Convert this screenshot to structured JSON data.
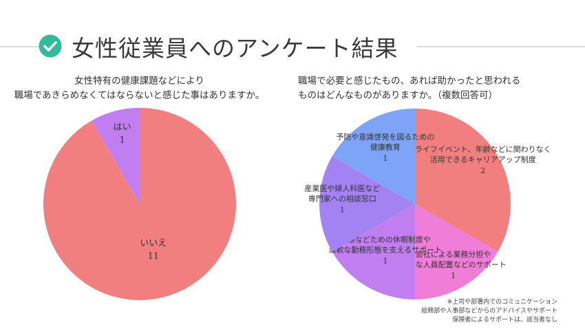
{
  "page": {
    "title": "女性従業員へのアンケート結果",
    "icon": "check-circle-icon",
    "colors": {
      "icon": "#33b99b",
      "rule": "#dcdcdc"
    }
  },
  "chart_data": [
    {
      "type": "pie",
      "title_lines": [
        "女性特有の健康課題などにより",
        "職場であきらめなくてはならないと感じた事はありますか。"
      ],
      "slices": [
        {
          "label_lines": [
            "いいえ"
          ],
          "value": 11,
          "value_text": "11",
          "color": "#f27f7f"
        },
        {
          "label_lines": [
            "はい"
          ],
          "value": 1,
          "value_text": "1",
          "color": "#c07ef0"
        }
      ],
      "start_angle_deg": 0,
      "direction": "clockwise"
    },
    {
      "type": "pie",
      "title_lines": [
        "職場で必要と感じたもの、あれば助かったと思われる",
        "ものはどんなものがありますか。（複数回答可）"
      ],
      "slices": [
        {
          "label_lines": [
            "ライフイベント、年齢などに関わりなく",
            "活用できるキャリアアップ制度"
          ],
          "value": 2,
          "value_text": "2",
          "color": "#f27f7f"
        },
        {
          "label_lines": [
            "会社による業務分担や",
            "適切な人員配置などのサポート"
          ],
          "value": 1,
          "value_text": "1",
          "color": "#f07dd8"
        },
        {
          "label_lines": [
            "治療などための休暇制度や",
            "柔軟な勤務形態を支えるサポート"
          ],
          "value": 1,
          "value_text": "1",
          "color": "#c07ef0"
        },
        {
          "label_lines": [
            "産業医や婦人科医など",
            "専門家への相談窓口"
          ],
          "value": 1,
          "value_text": "1",
          "color": "#a383f3"
        },
        {
          "label_lines": [
            "予防や意識啓発を図るための",
            "健康教育"
          ],
          "value": 1,
          "value_text": "1",
          "color": "#7ea4f8"
        }
      ],
      "start_angle_deg": 0,
      "direction": "clockwise",
      "footnote_lines": [
        "※上司や部署内でのコミュニケーション",
        "総務部や人事部などからのアドバイスやサポート",
        "保険者によるサポートは、該当者なし"
      ]
    }
  ]
}
